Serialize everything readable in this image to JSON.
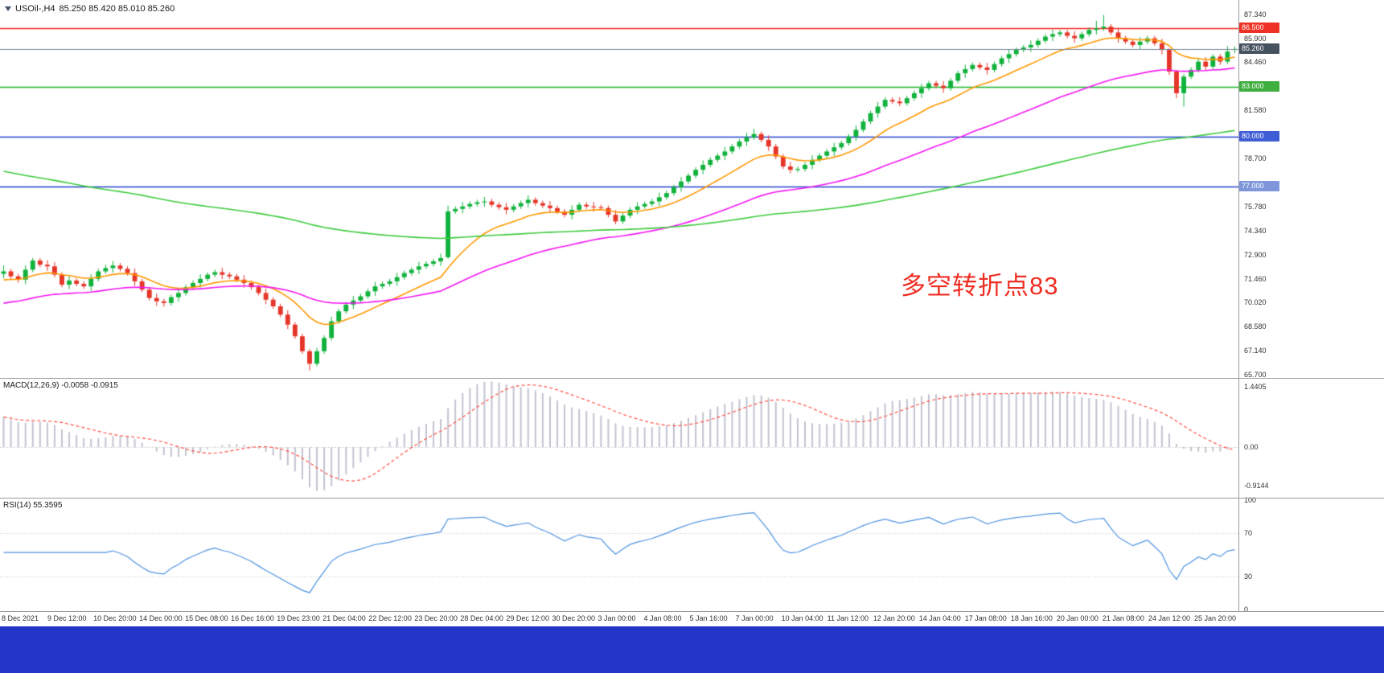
{
  "window": {
    "bg": "#ffffff",
    "taskbar_color": "#2336c9"
  },
  "header": {
    "title": "USOil-,H4",
    "ohlc": "85.250 85.420 85.010 85.260"
  },
  "annotation": {
    "text": "多空转折点83",
    "color": "#ee2e23"
  },
  "indicators": {
    "macd": {
      "label": "MACD(12,26,9) -0.0058 -0.0915",
      "ticks": [
        {
          "label": "1.4405",
          "value": 1.4405
        },
        {
          "label": "0.00",
          "value": 0
        },
        {
          "label": "-0.9144",
          "value": -0.9144
        }
      ]
    },
    "rsi": {
      "label": "RSI(14) 55.3595",
      "ticks": [
        {
          "label": "100",
          "value": 100
        },
        {
          "label": "70",
          "value": 70
        },
        {
          "label": "30",
          "value": 30
        },
        {
          "label": "0",
          "value": 0
        }
      ]
    }
  },
  "chart_data": {
    "type": "candlestick",
    "symbol": "USOil-",
    "timeframe": "H4",
    "y_range": [
      65.5,
      88.2
    ],
    "price_ticks": [
      {
        "label": "87.340",
        "value": 87.34
      },
      {
        "label": "85.900",
        "value": 85.9
      },
      {
        "label": "84.460",
        "value": 84.46
      },
      {
        "label": "81.580",
        "value": 81.58
      },
      {
        "label": "78.700",
        "value": 78.7
      },
      {
        "label": "75.780",
        "value": 75.78
      },
      {
        "label": "74.340",
        "value": 74.34
      },
      {
        "label": "72.900",
        "value": 72.9
      },
      {
        "label": "71.460",
        "value": 71.46
      },
      {
        "label": "70.020",
        "value": 70.02
      },
      {
        "label": "68.580",
        "value": 68.58
      },
      {
        "label": "67.140",
        "value": 67.14
      },
      {
        "label": "65.700",
        "value": 65.7
      }
    ],
    "price_badges": [
      {
        "label": "86.500",
        "value": 86.5,
        "bg": "#ee3124"
      },
      {
        "label": "85.260",
        "value": 85.26,
        "bg": "#46525f"
      },
      {
        "label": "83.000",
        "value": 83.0,
        "bg": "#3eae3e"
      },
      {
        "label": "80.000",
        "value": 80.0,
        "bg": "#3f5ed6"
      },
      {
        "label": "77.000",
        "value": 77.0,
        "bg": "#7f97da"
      }
    ],
    "horizontal_lines": [
      {
        "value": 86.5,
        "color": "#f42a20",
        "width": 1.6
      },
      {
        "value": 83.0,
        "color": "#18b426",
        "width": 1.6
      },
      {
        "value": 80.0,
        "color": "#2743cf",
        "width": 1.6
      },
      {
        "value": 77.0,
        "color": "#2743cf",
        "width": 1.6
      }
    ],
    "price_line": {
      "value": 85.26,
      "color": "#74859a",
      "width": 1
    },
    "moving_averages": [
      {
        "name": "fast",
        "period": 13,
        "seed": 71.3,
        "color": "#ff9800"
      },
      {
        "name": "mid",
        "period": 45,
        "seed": 69.9,
        "color": "#f318f3"
      },
      {
        "name": "slow",
        "period": 144,
        "seed": 78.0,
        "color": "#3ecb3e"
      }
    ],
    "candle_colors": {
      "up": "#11b23c",
      "down": "#e53529"
    },
    "candles": [
      [
        71.75,
        72.25,
        71.48,
        71.9
      ],
      [
        71.9,
        72.05,
        71.45,
        71.6
      ],
      [
        71.6,
        71.75,
        71.22,
        71.4
      ],
      [
        71.4,
        72.27,
        71.13,
        72.0
      ],
      [
        72.0,
        72.7,
        71.85,
        72.55
      ],
      [
        72.55,
        72.7,
        72.15,
        72.3
      ],
      [
        72.3,
        72.57,
        71.93,
        72.2
      ],
      [
        72.2,
        72.45,
        71.55,
        71.7
      ],
      [
        71.7,
        71.85,
        70.95,
        71.1
      ],
      [
        71.1,
        71.62,
        70.83,
        71.35
      ],
      [
        71.35,
        71.5,
        71.0,
        71.15
      ],
      [
        71.15,
        71.3,
        70.85,
        71.0
      ],
      [
        71.0,
        71.72,
        70.73,
        71.45
      ],
      [
        71.45,
        72.05,
        71.3,
        71.9
      ],
      [
        71.9,
        72.3,
        71.75,
        72.1
      ],
      [
        72.1,
        72.52,
        71.83,
        72.25
      ],
      [
        72.25,
        72.4,
        71.9,
        72.05
      ],
      [
        72.05,
        72.2,
        71.65,
        71.8
      ],
      [
        71.8,
        72.07,
        71.03,
        71.3
      ],
      [
        71.3,
        71.45,
        70.65,
        70.8
      ],
      [
        70.8,
        70.95,
        70.15,
        70.3
      ],
      [
        70.3,
        70.57,
        69.83,
        70.1
      ],
      [
        70.1,
        70.25,
        69.78,
        70.0
      ],
      [
        70.0,
        70.5,
        69.85,
        70.35
      ],
      [
        70.35,
        70.87,
        70.08,
        70.6
      ],
      [
        70.6,
        71.1,
        70.45,
        70.95
      ],
      [
        70.95,
        71.35,
        70.8,
        71.2
      ],
      [
        71.2,
        71.72,
        70.93,
        71.45
      ],
      [
        71.45,
        71.85,
        71.3,
        71.7
      ],
      [
        71.7,
        72.0,
        71.55,
        71.85
      ],
      [
        71.85,
        72.12,
        71.43,
        71.7
      ],
      [
        71.7,
        71.85,
        71.45,
        71.6
      ],
      [
        71.6,
        71.75,
        71.25,
        71.4
      ],
      [
        71.4,
        71.67,
        70.93,
        71.2
      ],
      [
        71.2,
        71.35,
        70.8,
        70.95
      ],
      [
        70.95,
        71.1,
        70.45,
        70.6
      ],
      [
        70.6,
        70.87,
        69.93,
        70.2
      ],
      [
        70.2,
        70.35,
        69.65,
        69.8
      ],
      [
        69.8,
        69.95,
        69.15,
        69.3
      ],
      [
        69.3,
        69.57,
        68.43,
        68.7
      ],
      [
        68.7,
        68.85,
        67.85,
        68.0
      ],
      [
        68.0,
        68.15,
        66.95,
        67.1
      ],
      [
        67.1,
        67.25,
        65.95,
        66.35
      ],
      [
        66.35,
        67.3,
        66.2,
        67.1
      ],
      [
        67.1,
        68.05,
        66.95,
        67.9
      ],
      [
        67.9,
        69.17,
        67.75,
        68.9
      ],
      [
        68.9,
        69.65,
        68.75,
        69.5
      ],
      [
        69.5,
        70.05,
        69.35,
        69.9
      ],
      [
        69.9,
        70.42,
        69.63,
        70.15
      ],
      [
        70.15,
        70.55,
        70.0,
        70.4
      ],
      [
        70.4,
        70.85,
        70.25,
        70.7
      ],
      [
        70.7,
        71.27,
        70.43,
        71.0
      ],
      [
        71.0,
        71.3,
        70.85,
        71.15
      ],
      [
        71.15,
        71.45,
        71.0,
        71.3
      ],
      [
        71.3,
        71.82,
        71.03,
        71.55
      ],
      [
        71.55,
        71.95,
        71.4,
        71.8
      ],
      [
        71.8,
        72.15,
        71.65,
        72.0
      ],
      [
        72.0,
        72.47,
        71.73,
        72.2
      ],
      [
        72.2,
        72.5,
        72.05,
        72.35
      ],
      [
        72.35,
        72.65,
        72.2,
        72.5
      ],
      [
        72.5,
        72.97,
        72.23,
        72.7
      ],
      [
        72.75,
        75.85,
        72.65,
        75.5
      ],
      [
        75.5,
        75.8,
        75.35,
        75.65
      ],
      [
        75.65,
        76.07,
        75.38,
        75.8
      ],
      [
        75.8,
        76.1,
        75.65,
        75.95
      ],
      [
        75.95,
        76.2,
        75.8,
        76.05
      ],
      [
        76.05,
        76.37,
        75.78,
        76.1
      ],
      [
        76.1,
        76.25,
        75.75,
        75.9
      ],
      [
        75.9,
        76.05,
        75.6,
        75.75
      ],
      [
        75.75,
        76.02,
        75.33,
        75.6
      ],
      [
        75.6,
        75.95,
        75.45,
        75.8
      ],
      [
        75.8,
        76.15,
        75.65,
        76.0
      ],
      [
        76.0,
        76.47,
        75.73,
        76.2
      ],
      [
        76.2,
        76.35,
        75.85,
        76.0
      ],
      [
        76.0,
        76.15,
        75.7,
        75.85
      ],
      [
        75.85,
        76.12,
        75.43,
        75.7
      ],
      [
        75.7,
        75.85,
        75.35,
        75.5
      ],
      [
        75.5,
        75.65,
        75.15,
        75.3
      ],
      [
        75.3,
        75.87,
        75.03,
        75.6
      ],
      [
        75.6,
        76.05,
        75.45,
        75.9
      ],
      [
        75.9,
        76.05,
        75.65,
        75.8
      ],
      [
        75.8,
        76.07,
        75.48,
        75.75
      ],
      [
        75.75,
        75.9,
        75.55,
        75.7
      ],
      [
        75.7,
        75.85,
        75.15,
        75.3
      ],
      [
        75.3,
        75.57,
        74.73,
        74.9
      ],
      [
        74.9,
        75.4,
        74.75,
        75.25
      ],
      [
        75.25,
        75.75,
        75.1,
        75.6
      ],
      [
        75.6,
        76.07,
        75.33,
        75.8
      ],
      [
        75.8,
        76.1,
        75.65,
        75.95
      ],
      [
        75.95,
        76.25,
        75.8,
        76.1
      ],
      [
        76.1,
        76.62,
        75.83,
        76.35
      ],
      [
        76.35,
        76.75,
        76.2,
        76.6
      ],
      [
        76.6,
        77.1,
        76.45,
        76.95
      ],
      [
        76.95,
        77.57,
        76.68,
        77.3
      ],
      [
        77.3,
        77.8,
        77.15,
        77.65
      ],
      [
        77.65,
        78.15,
        77.5,
        78.0
      ],
      [
        78.0,
        78.57,
        77.73,
        78.3
      ],
      [
        78.3,
        78.75,
        78.15,
        78.6
      ],
      [
        78.6,
        79.0,
        78.45,
        78.85
      ],
      [
        78.85,
        79.37,
        78.58,
        79.1
      ],
      [
        79.1,
        79.55,
        78.95,
        79.4
      ],
      [
        79.4,
        79.85,
        79.25,
        79.7
      ],
      [
        79.7,
        80.22,
        79.43,
        79.95
      ],
      [
        79.95,
        80.45,
        79.8,
        80.15
      ],
      [
        80.15,
        80.3,
        79.65,
        79.8
      ],
      [
        79.8,
        80.07,
        79.13,
        79.4
      ],
      [
        79.4,
        79.55,
        78.65,
        78.8
      ],
      [
        78.8,
        78.95,
        78.05,
        78.2
      ],
      [
        78.2,
        78.47,
        77.8,
        78.0
      ],
      [
        78.0,
        78.2,
        77.85,
        78.05
      ],
      [
        78.05,
        78.45,
        77.9,
        78.3
      ],
      [
        78.3,
        78.87,
        78.03,
        78.6
      ],
      [
        78.6,
        79.0,
        78.45,
        78.85
      ],
      [
        78.85,
        79.25,
        78.7,
        79.1
      ],
      [
        79.1,
        79.62,
        78.83,
        79.35
      ],
      [
        79.35,
        79.75,
        79.2,
        79.6
      ],
      [
        79.6,
        80.15,
        79.45,
        80.0
      ],
      [
        80.0,
        80.67,
        79.73,
        80.4
      ],
      [
        80.4,
        81.05,
        80.25,
        80.9
      ],
      [
        80.9,
        81.55,
        80.75,
        81.4
      ],
      [
        81.4,
        82.07,
        81.13,
        81.8
      ],
      [
        81.8,
        82.35,
        81.65,
        82.2
      ],
      [
        82.2,
        82.35,
        81.95,
        82.1
      ],
      [
        82.1,
        82.37,
        81.83,
        82.0
      ],
      [
        82.0,
        82.45,
        81.85,
        82.3
      ],
      [
        82.3,
        82.75,
        82.15,
        82.6
      ],
      [
        82.6,
        83.17,
        82.33,
        82.9
      ],
      [
        82.9,
        83.35,
        82.75,
        83.2
      ],
      [
        83.2,
        83.35,
        82.9,
        83.05
      ],
      [
        83.05,
        83.32,
        82.63,
        82.9
      ],
      [
        82.9,
        83.5,
        82.75,
        83.35
      ],
      [
        83.35,
        83.95,
        83.2,
        83.8
      ],
      [
        83.8,
        84.32,
        83.53,
        84.05
      ],
      [
        84.05,
        84.45,
        83.9,
        84.3
      ],
      [
        84.3,
        84.45,
        84.0,
        84.15
      ],
      [
        84.15,
        84.42,
        83.73,
        84.0
      ],
      [
        84.0,
        84.5,
        83.85,
        84.35
      ],
      [
        84.35,
        84.85,
        84.2,
        84.7
      ],
      [
        84.7,
        85.22,
        84.43,
        84.95
      ],
      [
        84.95,
        85.35,
        84.8,
        85.2
      ],
      [
        85.2,
        85.5,
        85.05,
        85.35
      ],
      [
        85.35,
        85.77,
        85.08,
        85.5
      ],
      [
        85.5,
        85.9,
        85.35,
        85.75
      ],
      [
        85.75,
        86.15,
        85.6,
        86.0
      ],
      [
        86.0,
        86.42,
        85.73,
        86.15
      ],
      [
        86.15,
        86.4,
        86.0,
        86.25
      ],
      [
        86.25,
        86.4,
        85.9,
        86.05
      ],
      [
        86.05,
        86.32,
        85.63,
        85.9
      ],
      [
        85.9,
        86.3,
        85.75,
        86.15
      ],
      [
        86.15,
        86.55,
        86.0,
        86.4
      ],
      [
        86.4,
        86.95,
        86.13,
        86.5
      ],
      [
        86.5,
        87.3,
        86.35,
        86.6
      ],
      [
        86.6,
        86.75,
        86.1,
        86.25
      ],
      [
        86.25,
        86.52,
        85.63,
        85.9
      ],
      [
        85.9,
        86.05,
        85.55,
        85.7
      ],
      [
        85.7,
        85.85,
        85.35,
        85.5
      ],
      [
        85.5,
        85.97,
        85.23,
        85.7
      ],
      [
        85.7,
        86.05,
        85.55,
        85.9
      ],
      [
        85.9,
        86.05,
        85.45,
        85.6
      ],
      [
        85.6,
        85.87,
        84.93,
        85.2
      ],
      [
        85.2,
        85.3,
        83.7,
        83.9
      ],
      [
        83.9,
        84.0,
        82.3,
        82.6
      ],
      [
        82.6,
        83.75,
        81.8,
        83.6
      ],
      [
        83.6,
        84.15,
        83.45,
        84.0
      ],
      [
        84.0,
        84.65,
        83.85,
        84.5
      ],
      [
        84.5,
        84.77,
        84.0,
        84.2
      ],
      [
        84.2,
        84.95,
        84.05,
        84.8
      ],
      [
        84.8,
        84.95,
        84.3,
        84.5
      ],
      [
        84.5,
        85.42,
        84.35,
        85.1
      ],
      [
        85.25,
        85.42,
        85.01,
        85.26
      ]
    ],
    "macd": {
      "fast": 12,
      "slow": 26,
      "signal_period": 9,
      "seed_fast": 71.6,
      "seed_slow": 70.85,
      "histogram_color": "#c3c3d1",
      "signal_color": "#ff4d42"
    },
    "rsi": {
      "period": 14,
      "color": "#4f93e0",
      "levels": [
        70,
        30
      ]
    },
    "x_labels": [
      "8 Dec 2021",
      "9 Dec 12:00",
      "10 Dec 20:00",
      "14 Dec 00:00",
      "15 Dec 08:00",
      "16 Dec 16:00",
      "19 Dec 23:00",
      "21 Dec 04:00",
      "22 Dec 12:00",
      "23 Dec 20:00",
      "28 Dec 04:00",
      "29 Dec 12:00",
      "30 Dec 20:00",
      "3 Jan 00:00",
      "4 Jan 08:00",
      "5 Jan 16:00",
      "7 Jan 00:00",
      "10 Jan 04:00",
      "11 Jan 12:00",
      "12 Jan 20:00",
      "14 Jan 04:00",
      "17 Jan 08:00",
      "18 Jan 16:00",
      "20 Jan 00:00",
      "21 Jan 08:00",
      "24 Jan 12:00",
      "25 Jan 20:00"
    ]
  }
}
